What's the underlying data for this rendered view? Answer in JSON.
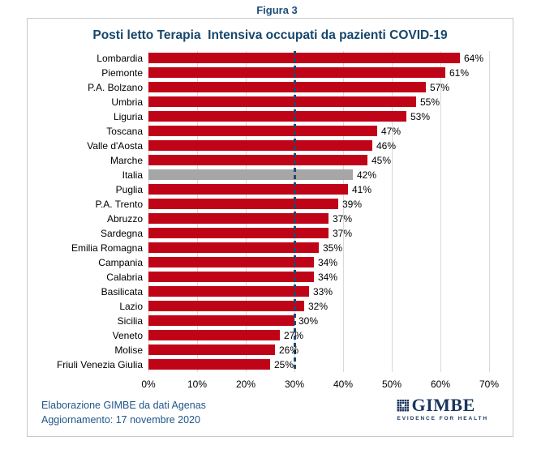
{
  "figure_label": "Figura 3",
  "chart_data": {
    "type": "bar",
    "orientation": "horizontal",
    "title": "Posti letto Terapia  Intensiva occupati da pazienti COVID-19",
    "categories": [
      "Lombardia",
      "Piemonte",
      "P.A. Bolzano",
      "Umbria",
      "Liguria",
      "Toscana",
      "Valle d'Aosta",
      "Marche",
      "Italia",
      "Puglia",
      "P.A. Trento",
      "Abruzzo",
      "Sardegna",
      "Emilia Romagna",
      "Campania",
      "Calabria",
      "Basilicata",
      "Lazio",
      "Sicilia",
      "Veneto",
      "Molise",
      "Friuli Venezia Giulia"
    ],
    "values": [
      64,
      61,
      57,
      55,
      53,
      47,
      46,
      45,
      42,
      41,
      39,
      37,
      37,
      35,
      34,
      34,
      33,
      32,
      30,
      27,
      26,
      25
    ],
    "value_suffix": "%",
    "highlight_category": "Italia",
    "bar_color": "#C00418",
    "highlight_color": "#A6A6A6",
    "grid_color": "#D9D9D9",
    "reference_line": {
      "value": 30,
      "color": "#1F4971",
      "style": "dotted"
    },
    "x_ticks": [
      "0%",
      "10%",
      "20%",
      "30%",
      "40%",
      "50%",
      "60%",
      "70%"
    ],
    "xlim": [
      0,
      70
    ],
    "legend": "none",
    "grid": "vertical"
  },
  "footer": {
    "line1": "Elaborazione GIMBE da dati Agenas",
    "line2": "Aggiornamento: 17 novembre 2020"
  },
  "logo": {
    "name": "GIMBE",
    "tagline": "EVIDENCE FOR HEALTH",
    "heart_icon": "♥"
  }
}
